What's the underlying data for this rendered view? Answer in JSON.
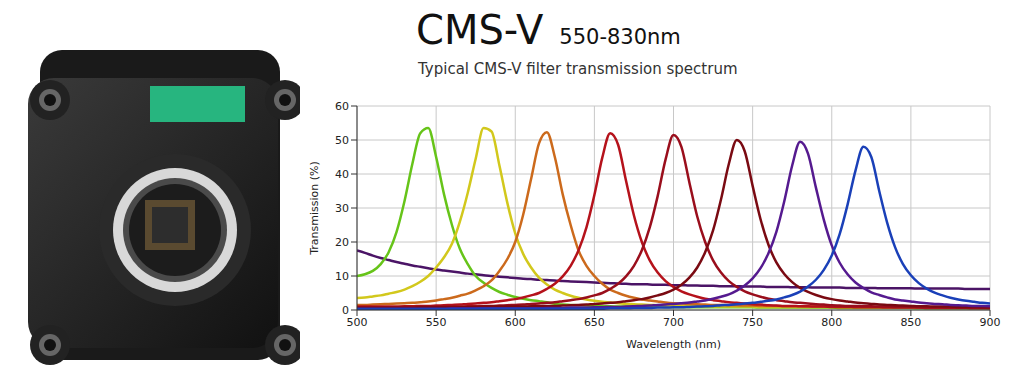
{
  "chart_data": {
    "type": "line",
    "title": "CMS-V",
    "annotations": [
      "550-830nm"
    ],
    "subtitle": "Typical CMS-V filter transmission spectrum",
    "x_label": "Wavelength (nm)",
    "y_label": "Transmission (%)",
    "xlim": [
      500,
      900
    ],
    "xticks": [
      500,
      550,
      600,
      650,
      700,
      750,
      800,
      850,
      900
    ],
    "ylim": [
      0,
      60
    ],
    "yticks": [
      0,
      10,
      20,
      30,
      40,
      50,
      60
    ],
    "grid": true,
    "x": [
      500,
      505,
      510,
      515,
      520,
      525,
      530,
      535,
      540,
      545,
      550,
      555,
      560,
      565,
      570,
      575,
      580,
      585,
      590,
      595,
      600,
      605,
      610,
      615,
      620,
      625,
      630,
      635,
      640,
      645,
      650,
      655,
      660,
      665,
      670,
      675,
      680,
      685,
      690,
      695,
      700,
      705,
      710,
      715,
      720,
      725,
      730,
      735,
      740,
      745,
      750,
      755,
      760,
      765,
      770,
      775,
      780,
      785,
      790,
      795,
      800,
      805,
      810,
      815,
      820,
      825,
      830,
      835,
      840,
      845,
      850,
      855,
      860,
      865,
      870,
      875,
      880,
      885,
      890,
      895,
      900
    ],
    "series": [
      {
        "color": "#4b1466",
        "values": [
          17.5,
          16.8,
          16,
          15.3,
          14.7,
          14.1,
          13.6,
          13.1,
          12.7,
          12.3,
          11.9,
          11.6,
          11.3,
          11,
          10.7,
          10.5,
          10.2,
          10,
          9.8,
          9.6,
          9.4,
          9.2,
          9.1,
          8.9,
          8.8,
          8.7,
          8.5,
          8.4,
          8.3,
          8.2,
          8.1,
          8,
          7.9,
          7.8,
          7.7,
          7.6,
          7.6,
          7.5,
          7.4,
          7.4,
          7.3,
          7.3,
          7.2,
          7.2,
          7.1,
          7.1,
          7,
          7,
          7,
          6.9,
          6.9,
          6.9,
          6.8,
          6.8,
          6.8,
          6.7,
          6.7,
          6.7,
          6.6,
          6.6,
          6.6,
          6.6,
          6.5,
          6.5,
          6.5,
          6.5,
          6.4,
          6.4,
          6.4,
          6.4,
          6.4,
          6.3,
          6.3,
          6.3,
          6.3,
          6.3,
          6.3,
          6.2,
          6.2,
          6.2,
          6.2
        ]
      },
      {
        "color": "#66c419",
        "values": [
          10,
          10.5,
          11.5,
          13.5,
          17,
          23,
          32,
          43,
          52,
          53.5,
          45,
          34,
          25,
          18,
          13.5,
          10,
          8,
          6.5,
          5.3,
          4.5,
          3.8,
          3.3,
          2.9,
          2.6,
          2.3,
          1.8,
          1.6,
          1.5,
          1.4,
          1.3,
          1.2,
          1.1,
          1.1,
          1,
          1,
          1,
          0.9,
          0.9,
          0.9,
          0.8,
          0.8,
          0.8,
          0.8,
          0.8,
          0.8,
          0.8,
          0.8,
          0.8,
          0.8,
          0.8,
          0.8,
          0.7,
          0.7,
          0.7,
          0.7,
          0.7,
          0.7,
          0.7,
          0.7,
          0.7,
          0.7,
          0.6,
          0.6,
          0.6,
          0.6,
          0.6,
          0.6,
          0.6,
          0.6,
          0.6,
          0.6,
          0.5,
          0.5,
          0.5,
          0.5,
          0.5,
          0.5,
          0.5,
          0.5,
          0.5,
          0.5
        ]
      },
      {
        "color": "#d2c81c",
        "values": [
          3.5,
          3.7,
          4,
          4.3,
          4.8,
          5.3,
          6,
          7,
          8.3,
          10,
          12.5,
          15.5,
          19.5,
          26,
          34.5,
          44.5,
          53.5,
          52.5,
          42.5,
          31.5,
          22.5,
          16.5,
          12.5,
          9.5,
          7.5,
          6,
          5,
          4.2,
          3.6,
          3.1,
          2.7,
          2.4,
          2.2,
          2,
          1.8,
          1.7,
          1.6,
          1.5,
          1.4,
          1.3,
          1.2,
          1.2,
          1.1,
          1.1,
          1.1,
          1,
          1,
          1,
          1,
          1,
          1,
          0.9,
          0.9,
          0.9,
          0.9,
          0.9,
          0.9,
          0.9,
          0.9,
          0.9,
          0.9,
          0.8,
          0.8,
          0.8,
          0.8,
          0.8,
          0.8,
          0.8,
          0.8,
          0.8,
          0.8,
          0.7,
          0.7,
          0.7,
          0.7,
          0.7,
          0.7,
          0.7,
          0.7,
          0.7,
          0.7
        ]
      },
      {
        "color": "#cc6a1c",
        "values": [
          1.5,
          1.5,
          1.6,
          1.7,
          1.8,
          1.9,
          2,
          2.1,
          2.3,
          2.5,
          2.8,
          3.2,
          3.6,
          4.2,
          4.8,
          5.8,
          7,
          8.7,
          11.5,
          15,
          20,
          28,
          38.5,
          49,
          52.3,
          45,
          34,
          25,
          17.5,
          13,
          10,
          7.7,
          6,
          5,
          4.2,
          3.6,
          3.1,
          2.8,
          2.5,
          2.2,
          2,
          1.9,
          1.8,
          1.7,
          1.6,
          1.5,
          1.5,
          1.4,
          1.4,
          1.3,
          1.3,
          1.2,
          1.2,
          1.2,
          1.1,
          1.1,
          1.1,
          1,
          1,
          1,
          1,
          0.9,
          0.9,
          0.9,
          0.9,
          0.9,
          0.9,
          0.9,
          0.9,
          0.9,
          0.9,
          0.8,
          0.8,
          0.8,
          0.8,
          0.8,
          0.8,
          0.8,
          0.8,
          0.8,
          0.8
        ]
      },
      {
        "color": "#b5121b",
        "values": [
          1,
          1,
          1,
          1,
          1,
          1,
          1.1,
          1.1,
          1.2,
          1.2,
          1.3,
          1.4,
          1.5,
          1.6,
          1.8,
          1.9,
          2.1,
          2.3,
          2.6,
          2.9,
          3.2,
          3.7,
          4.3,
          5,
          6.2,
          7.7,
          9.9,
          13,
          17.6,
          24.3,
          33.8,
          44.8,
          52,
          48.6,
          38,
          27.8,
          20,
          14.6,
          11,
          8.5,
          6.8,
          5.5,
          4.6,
          3.9,
          3.3,
          2.9,
          2.6,
          2.3,
          2.1,
          1.9,
          1.7,
          1.6,
          1.4,
          1.3,
          1.2,
          1.2,
          1.1,
          1.1,
          1,
          1,
          0.9,
          0.9,
          0.9,
          0.8,
          0.8,
          0.8,
          0.8,
          0.7,
          0.7,
          0.7,
          0.7,
          0.7,
          0.6,
          0.6,
          0.6,
          0.6,
          0.6,
          0.6,
          0.5,
          0.5,
          0.5
        ]
      },
      {
        "color": "#9a0e1c",
        "values": [
          0.8,
          0.8,
          0.8,
          0.8,
          0.8,
          0.8,
          0.9,
          0.9,
          1,
          1,
          1,
          1,
          1,
          1,
          1.1,
          1.1,
          1.2,
          1.2,
          1.3,
          1.4,
          1.5,
          1.6,
          1.8,
          1.9,
          2.1,
          2.3,
          2.6,
          2.9,
          3.2,
          3.7,
          4.3,
          5,
          6.2,
          7.7,
          9.9,
          13,
          17.6,
          24.3,
          33.5,
          44.3,
          51.5,
          48,
          37.6,
          27.5,
          20,
          14.6,
          11,
          8.5,
          6.8,
          5.5,
          4.6,
          3.9,
          3.3,
          2.9,
          2.6,
          2.3,
          2.1,
          1.9,
          1.7,
          1.6,
          1.4,
          1.3,
          1.2,
          1.2,
          1.1,
          1.1,
          1,
          1,
          0.9,
          0.9,
          0.9,
          0.8,
          0.8,
          0.8,
          0.8,
          0.7,
          0.7,
          0.7,
          0.7,
          0.7,
          0.6
        ]
      },
      {
        "color": "#7a0a12",
        "values": [
          0.6,
          0.6,
          0.6,
          0.6,
          0.6,
          0.6,
          0.6,
          0.6,
          0.7,
          0.7,
          0.7,
          0.7,
          0.7,
          0.8,
          0.8,
          0.8,
          1,
          1,
          1,
          1,
          1,
          1,
          1.1,
          1.1,
          1.2,
          1.2,
          1.3,
          1.4,
          1.5,
          1.6,
          1.8,
          1.9,
          2.1,
          2.3,
          2.6,
          2.9,
          3.2,
          3.7,
          4.3,
          5,
          6,
          7.4,
          9.5,
          12.5,
          17,
          23.4,
          32.5,
          43,
          50,
          46.7,
          36.5,
          26.7,
          19.2,
          14,
          10.6,
          8.2,
          6.5,
          5.3,
          4.4,
          3.7,
          3.2,
          2.8,
          2.5,
          2.2,
          2,
          1.8,
          1.6,
          1.5,
          1.4,
          1.3,
          1.2,
          1.1,
          1.1,
          1,
          1,
          1,
          0.9,
          0.9,
          0.9,
          0.8,
          0.8
        ]
      },
      {
        "color": "#551a8f",
        "values": [
          0.4,
          0.4,
          0.4,
          0.4,
          0.4,
          0.4,
          0.4,
          0.4,
          0.4,
          0.4,
          0.4,
          0.4,
          0.5,
          0.5,
          0.5,
          0.5,
          0.5,
          0.5,
          0.5,
          0.5,
          0.5,
          0.5,
          0.5,
          0.5,
          0.6,
          0.6,
          0.6,
          0.7,
          0.7,
          0.7,
          0.8,
          0.8,
          0.9,
          0.9,
          1,
          1.1,
          1.2,
          1.3,
          1.5,
          1.6,
          1.8,
          2,
          2.2,
          2.5,
          2.8,
          3.3,
          3.9,
          4.6,
          5.7,
          7.2,
          9.3,
          12.3,
          16.7,
          23,
          32,
          42.5,
          49.5,
          46,
          36,
          26.5,
          19,
          13.9,
          10.5,
          8.1,
          6.5,
          5.2,
          4.4,
          3.7,
          3.1,
          2.8,
          2.5,
          2.2,
          2,
          1.8,
          1.7,
          1.5,
          1.4,
          1.3,
          1.2,
          1.2,
          1.1
        ]
      },
      {
        "color": "#1a40b8",
        "values": [
          0.3,
          0.3,
          0.3,
          0.3,
          0.3,
          0.3,
          0.3,
          0.3,
          0.3,
          0.3,
          0.3,
          0.3,
          0.3,
          0.3,
          0.3,
          0.3,
          0.4,
          0.4,
          0.4,
          0.4,
          0.4,
          0.4,
          0.4,
          0.4,
          0.4,
          0.4,
          0.4,
          0.4,
          0.4,
          0.4,
          0.4,
          0.4,
          0.5,
          0.5,
          0.5,
          0.6,
          0.6,
          0.6,
          0.7,
          0.7,
          0.8,
          0.8,
          0.9,
          1,
          1.1,
          1.2,
          1.4,
          1.5,
          1.7,
          1.9,
          2.1,
          2.4,
          2.7,
          3.1,
          3.7,
          4.4,
          5.4,
          6.9,
          8.9,
          11.8,
          16,
          22.3,
          31,
          41,
          48,
          45,
          35,
          25.7,
          18.5,
          13.5,
          10.2,
          7.9,
          6.3,
          5.1,
          4.3,
          3.6,
          3.1,
          2.7,
          2.4,
          2.1,
          1.9
        ]
      }
    ]
  }
}
